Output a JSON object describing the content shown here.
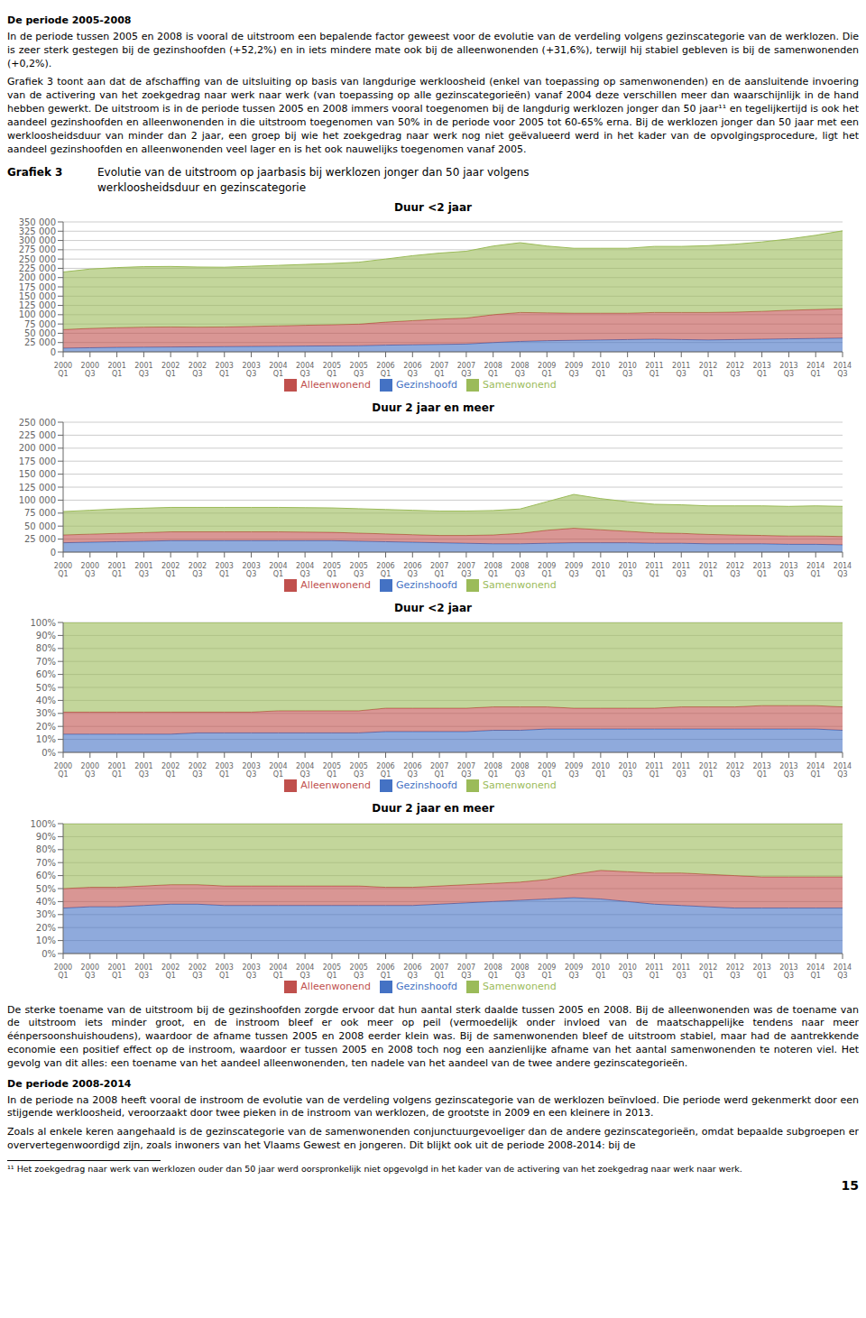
{
  "title": "Grafiek 3",
  "subtitle": "Evolutie van de uitstroom op jaarbasis bij werklozen jonger dan 50 jaar volgens\nwerkloosheidsduur en gezinscategorie",
  "text_above": [
    {
      "heading": "De periode 2005-2008"
    },
    {
      "text": "In de periode tussen 2005 en 2008 is vooral de uitstroom een bepalende factor geweest voor de evolutie van de verdeling volgens gezinscategorie van de werklozen. Die is zeer sterk gestegen bij de gezinshoofden (+52,2%) en in iets mindere mate ook bij de alleenwonenden (+31,6%), terwijl hij stabiel gebleven is bij de samenwonenden (+0,2%)."
    },
    {
      "text": "Grafiek 3 toont aan dat de afschaffing van de uitsluiting op basis van langdurige werkloosheid (enkel van toepassing op samenwonenden) en de aansluitende invoering van de activering van het zoekgedrag naar werk naar werk (van toepassing op alle gezinscategorieën) vanaf 2004 deze verschillen meer dan waarschijnlijk in de hand hebben gewerkt. De uitstroom is in de periode tussen 2005 en 2008 immers vooral toegenomen bij de langdurig werklozen jonger dan 50 jaar¹¹ en tegelijkertijd is ook het aandeel gezinshoofden en alleenwonenden in die uitstroom toegenomen van 50% in de periode voor 2005 tot 60-65% erna. Bij de werklozen jonger dan 50 jaar met een werkloosheidsduur van minder dan 2 jaar, een groep bij wie het zoekgedrag naar werk nog niet geëvalueerd werd in het kader van de opvolgingsprocedure, ligt het aandeel gezinshoofden en alleenwonenden veel lager en is het ook nauwelijks toegenomen vanaf 2005."
    }
  ],
  "text_below": [
    {
      "text": "De sterke toename van de uitstroom bij de gezinshoofden zorgde ervoor dat hun aantal sterk daalde tussen 2005 en 2008. Bij de alleenwonenden was de toename van de uitstroom iets minder groot, en de instroom bleef er ook meer op peil (vermoedelijk onder invloed van de maatschappelijke tendens naar meer éénpersoonshuishoudens), waardoor de afname tussen 2005 en 2008 eerder klein was. Bij de samenwonenden bleef de uitstroom stabiel, maar had de aantrekkende economie een positief effect op de instroom, waardoor er tussen 2005 en 2008 toch nog een aanzienlijke afname van het aantal samenwonenden te noteren viel. Het gevolg van dit alles: een toename van het aandeel alleenwonenden, ten nadele van het aandeel van de twee andere gezinscategorieën."
    },
    {
      "heading": "De periode 2008-2014"
    },
    {
      "text": "In de periode na 2008 heeft vooral de instroom de evolutie van de verdeling volgens gezinscategorie van de werklozen beïnvloed. Die periode werd gekenmerkt door een stijgende werkloosheid, veroorzaakt door twee pieken in de instroom van werklozen, de grootste in 2009 en een kleinere in 2013."
    },
    {
      "text": "Zoals al enkele keren aangehaald is de gezinscategorie van de samenwonenden conjunctuurgevoeliger dan de andere gezinscategorieën, omdat bepaalde subgroepen er oververtegenwoordigd zijn, zoals inwoners van het Vlaams Gewest en jongeren. Dit blijkt ook uit de periode 2008-2014: bij de"
    }
  ],
  "footnote": "¹¹ Het zoekgedrag naar werk van werklozen ouder dan 50 jaar werd oorspronkelijk niet opgevolgd in het kader van de activering van het zoekgedrag naar werk naar werk.",
  "page_number": "15",
  "chart_data": [
    {
      "type": "area",
      "stacked": true,
      "grid": true,
      "legend": "bottom",
      "title": "Duur <2 jaar",
      "categories": [
        "2000\nQ1",
        "2000\nQ3",
        "2001\nQ1",
        "2001\nQ3",
        "2002\nQ1",
        "2002\nQ3",
        "2003\nQ1",
        "2003\nQ3",
        "2004\nQ1",
        "2004\nQ3",
        "2005\nQ1",
        "2005\nQ3",
        "2006\nQ1",
        "2006\nQ3",
        "2007\nQ1",
        "2007\nQ3",
        "2008\nQ1",
        "2008\nQ3",
        "2009\nQ1",
        "2009\nQ3",
        "2010\nQ1",
        "2010\nQ3",
        "2011\nQ1",
        "2011\nQ3",
        "2012\nQ1",
        "2012\nQ3",
        "2013\nQ1",
        "2013\nQ3",
        "2014\nQ1",
        "2014\nQ3"
      ],
      "series": [
        {
          "name": "Gezinshoofd",
          "color": "#4472C4",
          "values": [
            10000,
            11000,
            12000,
            12500,
            13000,
            13500,
            14000,
            14500,
            15000,
            15500,
            16000,
            16500,
            18000,
            19000,
            20000,
            21000,
            25000,
            28000,
            30000,
            31000,
            32000,
            33000,
            34000,
            33000,
            32000,
            33000,
            34000,
            35000,
            36000,
            37000
          ]
        },
        {
          "name": "Alleenwonend",
          "color": "#C0504D",
          "values": [
            50000,
            52000,
            53000,
            54000,
            54000,
            53000,
            53000,
            54000,
            55000,
            56000,
            57000,
            58000,
            62000,
            65000,
            68000,
            70000,
            75000,
            78000,
            75000,
            73000,
            72000,
            71000,
            72000,
            73000,
            74000,
            74000,
            75000,
            77000,
            78000,
            79000
          ]
        },
        {
          "name": "Samenwonend",
          "color": "#9BBB59",
          "values": [
            155000,
            160000,
            162000,
            163000,
            163000,
            162000,
            161000,
            162000,
            163000,
            164000,
            165000,
            167000,
            170000,
            175000,
            178000,
            180000,
            185000,
            188000,
            180000,
            175000,
            175000,
            175000,
            178000,
            178000,
            180000,
            183000,
            187000,
            192000,
            200000,
            210000
          ]
        }
      ],
      "ylim": [
        0,
        350000
      ],
      "yticks": [
        0,
        {
          "value": 25000,
          "label": "25 000"
        },
        {
          "value": 50000,
          "label": "50 000"
        },
        {
          "value": 75000,
          "label": "75 000"
        },
        {
          "value": 100000,
          "label": "100 000"
        },
        {
          "value": 125000,
          "label": "125 000"
        },
        {
          "value": 150000,
          "label": "150 000"
        },
        {
          "value": 175000,
          "label": "175 000"
        },
        {
          "value": 200000,
          "label": "200 000"
        },
        {
          "value": 225000,
          "label": "225 000"
        },
        {
          "value": 250000,
          "label": "250 000"
        },
        {
          "value": 275000,
          "label": "275 000"
        },
        {
          "value": 300000,
          "label": "300 000"
        },
        {
          "value": 325000,
          "label": "325 000"
        },
        {
          "value": 350000,
          "label": "350 000"
        }
      ]
    },
    {
      "type": "area",
      "stacked": true,
      "grid": true,
      "legend": "bottom",
      "title": "Duur 2 jaar en meer",
      "categories": [
        "2000\nQ1",
        "2000\nQ3",
        "2001\nQ1",
        "2001\nQ3",
        "2002\nQ1",
        "2002\nQ3",
        "2003\nQ1",
        "2003\nQ3",
        "2004\nQ1",
        "2004\nQ3",
        "2005\nQ1",
        "2005\nQ3",
        "2006\nQ1",
        "2006\nQ3",
        "2007\nQ1",
        "2007\nQ3",
        "2008\nQ1",
        "2008\nQ3",
        "2009\nQ1",
        "2009\nQ3",
        "2010\nQ1",
        "2010\nQ3",
        "2011\nQ1",
        "2011\nQ3",
        "2012\nQ1",
        "2012\nQ3",
        "2013\nQ1",
        "2013\nQ3",
        "2014\nQ1",
        "2014\nQ3"
      ],
      "series": [
        {
          "name": "Gezinshoofd",
          "color": "#4472C4",
          "values": [
            18000,
            19000,
            20000,
            21000,
            22000,
            22000,
            22000,
            22000,
            22000,
            22000,
            22000,
            21000,
            20000,
            19000,
            18000,
            17000,
            16000,
            16000,
            17000,
            18000,
            18000,
            18000,
            17000,
            17000,
            16000,
            16000,
            16000,
            15000,
            15000,
            14000
          ]
        },
        {
          "name": "Alleenwonend",
          "color": "#C0504D",
          "values": [
            15000,
            15500,
            16000,
            16500,
            17000,
            17000,
            17000,
            17000,
            17000,
            16500,
            16000,
            15500,
            15000,
            14500,
            14000,
            15000,
            17000,
            20000,
            25000,
            28000,
            25000,
            22000,
            20000,
            19000,
            18000,
            17000,
            16000,
            16000,
            16000,
            16000
          ]
        },
        {
          "name": "Samenwonend",
          "color": "#9BBB59",
          "values": [
            45000,
            46000,
            47000,
            47000,
            47000,
            47000,
            47000,
            47000,
            47000,
            47000,
            47000,
            47000,
            47000,
            47000,
            47000,
            47000,
            47000,
            47000,
            55000,
            65000,
            60000,
            57000,
            55000,
            55000,
            55000,
            56000,
            57000,
            57000,
            58000,
            58000
          ]
        }
      ],
      "ylim": [
        0,
        250000
      ],
      "yticks": [
        0,
        {
          "value": 25000,
          "label": "25 000"
        },
        {
          "value": 50000,
          "label": "50 000"
        },
        {
          "value": 75000,
          "label": "75 000"
        },
        {
          "value": 100000,
          "label": "100 000"
        },
        {
          "value": 125000,
          "label": "125 000"
        },
        {
          "value": 150000,
          "label": "150 000"
        },
        {
          "value": 175000,
          "label": "175 000"
        },
        {
          "value": 200000,
          "label": "200 000"
        },
        {
          "value": 225000,
          "label": "225 000"
        },
        {
          "value": 250000,
          "label": "250 000"
        }
      ]
    },
    {
      "type": "area",
      "stacked": true,
      "grid": true,
      "legend": "bottom",
      "title": "Duur <2 jaar",
      "categories": [
        "2000\nQ1",
        "2000\nQ3",
        "2001\nQ1",
        "2001\nQ3",
        "2002\nQ1",
        "2002\nQ3",
        "2003\nQ1",
        "2003\nQ3",
        "2004\nQ1",
        "2004\nQ3",
        "2005\nQ1",
        "2005\nQ3",
        "2006\nQ1",
        "2006\nQ3",
        "2007\nQ1",
        "2007\nQ3",
        "2008\nQ1",
        "2008\nQ3",
        "2009\nQ1",
        "2009\nQ3",
        "2010\nQ1",
        "2010\nQ3",
        "2011\nQ1",
        "2011\nQ3",
        "2012\nQ1",
        "2012\nQ3",
        "2013\nQ1",
        "2013\nQ3",
        "2014\nQ1",
        "2014\nQ3"
      ],
      "series": [
        {
          "name": "Gezinshoofd",
          "color": "#4472C4",
          "values": [
            0.14,
            0.14,
            0.14,
            0.14,
            0.14,
            0.15,
            0.15,
            0.15,
            0.15,
            0.15,
            0.15,
            0.15,
            0.16,
            0.16,
            0.16,
            0.16,
            0.17,
            0.17,
            0.18,
            0.18,
            0.18,
            0.18,
            0.18,
            0.18,
            0.18,
            0.18,
            0.18,
            0.18,
            0.18,
            0.17
          ]
        },
        {
          "name": "Alleenwonend",
          "color": "#C0504D",
          "values": [
            0.17,
            0.17,
            0.17,
            0.17,
            0.17,
            0.16,
            0.16,
            0.16,
            0.17,
            0.17,
            0.17,
            0.17,
            0.18,
            0.18,
            0.18,
            0.18,
            0.18,
            0.18,
            0.17,
            0.16,
            0.16,
            0.16,
            0.16,
            0.17,
            0.17,
            0.17,
            0.18,
            0.18,
            0.18,
            0.18
          ]
        },
        {
          "name": "Samenwonend",
          "color": "#9BBB59",
          "values": [
            0.69,
            0.69,
            0.69,
            0.69,
            0.69,
            0.69,
            0.69,
            0.69,
            0.68,
            0.68,
            0.68,
            0.68,
            0.66,
            0.66,
            0.66,
            0.66,
            0.65,
            0.65,
            0.65,
            0.66,
            0.66,
            0.66,
            0.66,
            0.65,
            0.65,
            0.65,
            0.64,
            0.64,
            0.64,
            0.65
          ]
        }
      ],
      "ylim": [
        0,
        1.0
      ],
      "yticks": [
        {
          "value": 0,
          "label": "0%"
        },
        {
          "value": 0.1,
          "label": "10%"
        },
        {
          "value": 0.2,
          "label": "20%"
        },
        {
          "value": 0.3,
          "label": "30%"
        },
        {
          "value": 0.4,
          "label": "40%"
        },
        {
          "value": 0.5,
          "label": "50%"
        },
        {
          "value": 0.6,
          "label": "60%"
        },
        {
          "value": 0.7,
          "label": "70%"
        },
        {
          "value": 0.8,
          "label": "80%"
        },
        {
          "value": 0.9,
          "label": "90%"
        },
        {
          "value": 1.0,
          "label": "100%"
        }
      ]
    },
    {
      "type": "area",
      "stacked": true,
      "grid": true,
      "legend": "bottom",
      "title": "Duur 2 jaar en meer",
      "categories": [
        "2000\nQ1",
        "2000\nQ3",
        "2001\nQ1",
        "2001\nQ3",
        "2002\nQ1",
        "2002\nQ3",
        "2003\nQ1",
        "2003\nQ3",
        "2004\nQ1",
        "2004\nQ3",
        "2005\nQ1",
        "2005\nQ3",
        "2006\nQ1",
        "2006\nQ3",
        "2007\nQ1",
        "2007\nQ3",
        "2008\nQ1",
        "2008\nQ3",
        "2009\nQ1",
        "2009\nQ3",
        "2010\nQ1",
        "2010\nQ3",
        "2011\nQ1",
        "2011\nQ3",
        "2012\nQ1",
        "2012\nQ3",
        "2013\nQ1",
        "2013\nQ3",
        "2014\nQ1",
        "2014\nQ3"
      ],
      "series": [
        {
          "name": "Gezinshoofd",
          "color": "#4472C4",
          "values": [
            0.35,
            0.36,
            0.36,
            0.37,
            0.38,
            0.38,
            0.37,
            0.37,
            0.37,
            0.37,
            0.37,
            0.37,
            0.37,
            0.37,
            0.38,
            0.39,
            0.4,
            0.41,
            0.42,
            0.43,
            0.42,
            0.4,
            0.38,
            0.37,
            0.36,
            0.35,
            0.35,
            0.35,
            0.35,
            0.35
          ]
        },
        {
          "name": "Alleenwonend",
          "color": "#C0504D",
          "values": [
            0.15,
            0.15,
            0.15,
            0.15,
            0.15,
            0.15,
            0.15,
            0.15,
            0.15,
            0.15,
            0.15,
            0.15,
            0.14,
            0.14,
            0.14,
            0.14,
            0.14,
            0.14,
            0.15,
            0.18,
            0.22,
            0.23,
            0.24,
            0.25,
            0.25,
            0.25,
            0.24,
            0.24,
            0.24,
            0.24
          ]
        },
        {
          "name": "Samenwonend",
          "color": "#9BBB59",
          "values": [
            0.5,
            0.49,
            0.49,
            0.48,
            0.47,
            0.47,
            0.48,
            0.48,
            0.48,
            0.48,
            0.48,
            0.48,
            0.49,
            0.49,
            0.48,
            0.47,
            0.46,
            0.45,
            0.43,
            0.39,
            0.36,
            0.37,
            0.38,
            0.38,
            0.39,
            0.4,
            0.41,
            0.41,
            0.41,
            0.41
          ]
        }
      ],
      "ylim": [
        0,
        1.0
      ],
      "yticks": [
        {
          "value": 0,
          "label": "0%"
        },
        {
          "value": 0.1,
          "label": "10%"
        },
        {
          "value": 0.2,
          "label": "20%"
        },
        {
          "value": 0.3,
          "label": "30%"
        },
        {
          "value": 0.4,
          "label": "40%"
        },
        {
          "value": 0.5,
          "label": "50%"
        },
        {
          "value": 0.6,
          "label": "60%"
        },
        {
          "value": 0.7,
          "label": "70%"
        },
        {
          "value": 0.8,
          "label": "80%"
        },
        {
          "value": 0.9,
          "label": "90%"
        },
        {
          "value": 1.0,
          "label": "100%"
        }
      ]
    }
  ]
}
